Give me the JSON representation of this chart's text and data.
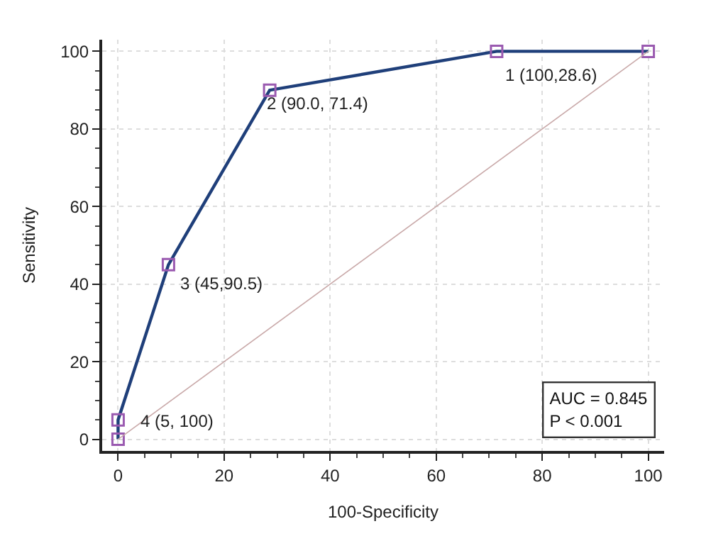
{
  "chart_data": {
    "type": "line",
    "xlabel": "100-Specificity",
    "ylabel": "Sensitivity",
    "series": [
      {
        "color": "#1f3f7a",
        "marker": "square",
        "x": [
          0,
          0,
          9.5,
          28.6,
          71.4,
          100
        ],
        "values": [
          0,
          5,
          45,
          90,
          100,
          100
        ]
      },
      {
        "color": "#c9a9a9",
        "marker": "none",
        "x": [
          0,
          100
        ],
        "values": [
          0,
          100
        ]
      }
    ],
    "xlim": [
      -3,
      103
    ],
    "ylim": [
      -3,
      103
    ],
    "xticks": [
      0,
      20,
      40,
      60,
      80,
      100
    ],
    "yticks": [
      0,
      20,
      40,
      60,
      80,
      100
    ],
    "grid": true,
    "annotations": [
      {
        "text": "4 (5, 100)",
        "x": 0,
        "y": 5
      },
      {
        "text": "3 (45,90.5)",
        "x": 9.5,
        "y": 45
      },
      {
        "text": "2 (90.0, 71.4)",
        "x": 28.6,
        "y": 90
      },
      {
        "text": "1 (100,28.6)",
        "x": 71.4,
        "y": 100
      },
      "AUC = 0.845\nP < 0.001"
    ]
  }
}
